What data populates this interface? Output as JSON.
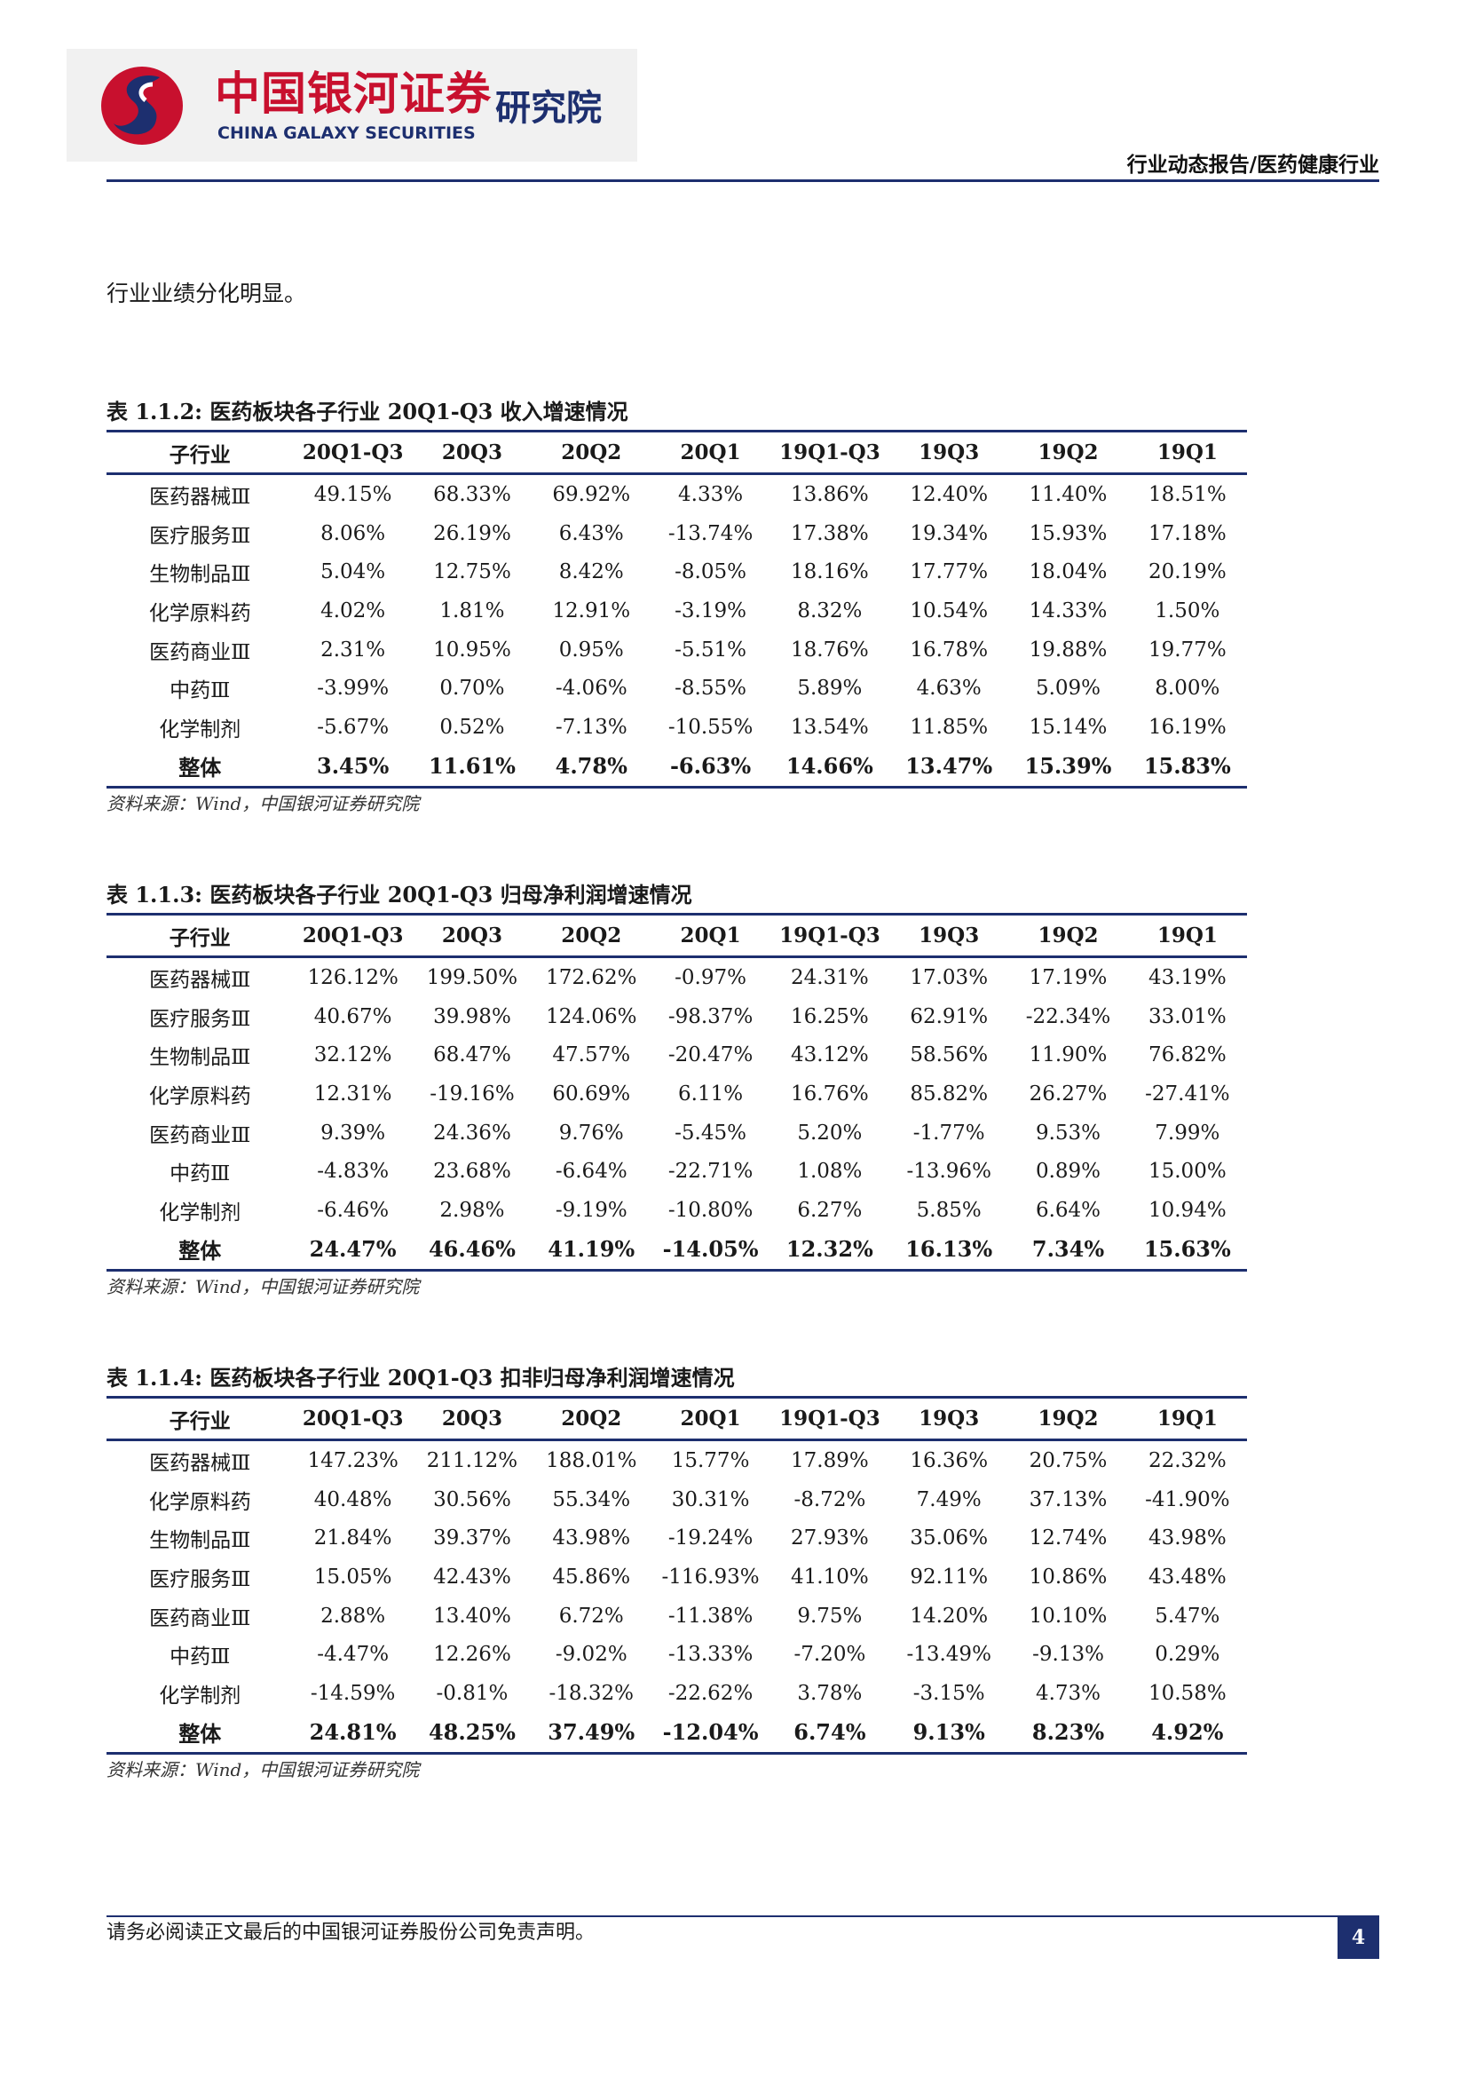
{
  "header": {
    "logo_cn": "中国银河证券",
    "logo_en": "CHINA GALAXY SECURITIES",
    "institute": "研究院",
    "report_type": "行业动态报告/医药健康行业",
    "colors": {
      "brand_red": "#c8102e",
      "brand_navy": "#1d2f6f"
    }
  },
  "intro": "行业业绩分化明显。",
  "columns": [
    "子行业",
    "20Q1-Q3",
    "20Q3",
    "20Q2",
    "20Q1",
    "19Q1-Q3",
    "19Q3",
    "19Q2",
    "19Q1"
  ],
  "tables": [
    {
      "title": "表 1.1.2:  医药板块各子行业 20Q1-Q3 收入增速情况",
      "rows": [
        [
          "医药器械Ⅲ",
          "49.15%",
          "68.33%",
          "69.92%",
          "4.33%",
          "13.86%",
          "12.40%",
          "11.40%",
          "18.51%"
        ],
        [
          "医疗服务Ⅲ",
          "8.06%",
          "26.19%",
          "6.43%",
          "-13.74%",
          "17.38%",
          "19.34%",
          "15.93%",
          "17.18%"
        ],
        [
          "生物制品Ⅲ",
          "5.04%",
          "12.75%",
          "8.42%",
          "-8.05%",
          "18.16%",
          "17.77%",
          "18.04%",
          "20.19%"
        ],
        [
          "化学原料药",
          "4.02%",
          "1.81%",
          "12.91%",
          "-3.19%",
          "8.32%",
          "10.54%",
          "14.33%",
          "1.50%"
        ],
        [
          "医药商业Ⅲ",
          "2.31%",
          "10.95%",
          "0.95%",
          "-5.51%",
          "18.76%",
          "16.78%",
          "19.88%",
          "19.77%"
        ],
        [
          "中药Ⅲ",
          "-3.99%",
          "0.70%",
          "-4.06%",
          "-8.55%",
          "5.89%",
          "4.63%",
          "5.09%",
          "8.00%"
        ],
        [
          "化学制剂",
          "-5.67%",
          "0.52%",
          "-7.13%",
          "-10.55%",
          "13.54%",
          "11.85%",
          "15.14%",
          "16.19%"
        ]
      ],
      "total": [
        "整体",
        "3.45%",
        "11.61%",
        "4.78%",
        "-6.63%",
        "14.66%",
        "13.47%",
        "15.39%",
        "15.83%"
      ],
      "source": "资料来源：Wind，中国银河证券研究院"
    },
    {
      "title": "表 1.1.3:  医药板块各子行业 20Q1-Q3 归母净利润增速情况",
      "rows": [
        [
          "医药器械Ⅲ",
          "126.12%",
          "199.50%",
          "172.62%",
          "-0.97%",
          "24.31%",
          "17.03%",
          "17.19%",
          "43.19%"
        ],
        [
          "医疗服务Ⅲ",
          "40.67%",
          "39.98%",
          "124.06%",
          "-98.37%",
          "16.25%",
          "62.91%",
          "-22.34%",
          "33.01%"
        ],
        [
          "生物制品Ⅲ",
          "32.12%",
          "68.47%",
          "47.57%",
          "-20.47%",
          "43.12%",
          "58.56%",
          "11.90%",
          "76.82%"
        ],
        [
          "化学原料药",
          "12.31%",
          "-19.16%",
          "60.69%",
          "6.11%",
          "16.76%",
          "85.82%",
          "26.27%",
          "-27.41%"
        ],
        [
          "医药商业Ⅲ",
          "9.39%",
          "24.36%",
          "9.76%",
          "-5.45%",
          "5.20%",
          "-1.77%",
          "9.53%",
          "7.99%"
        ],
        [
          "中药Ⅲ",
          "-4.83%",
          "23.68%",
          "-6.64%",
          "-22.71%",
          "1.08%",
          "-13.96%",
          "0.89%",
          "15.00%"
        ],
        [
          "化学制剂",
          "-6.46%",
          "2.98%",
          "-9.19%",
          "-10.80%",
          "6.27%",
          "5.85%",
          "6.64%",
          "10.94%"
        ]
      ],
      "total": [
        "整体",
        "24.47%",
        "46.46%",
        "41.19%",
        "-14.05%",
        "12.32%",
        "16.13%",
        "7.34%",
        "15.63%"
      ],
      "source": "资料来源：Wind，中国银河证券研究院"
    },
    {
      "title": "表 1.1.4:  医药板块各子行业 20Q1-Q3 扣非归母净利润增速情况",
      "rows": [
        [
          "医药器械Ⅲ",
          "147.23%",
          "211.12%",
          "188.01%",
          "15.77%",
          "17.89%",
          "16.36%",
          "20.75%",
          "22.32%"
        ],
        [
          "化学原料药",
          "40.48%",
          "30.56%",
          "55.34%",
          "30.31%",
          "-8.72%",
          "7.49%",
          "37.13%",
          "-41.90%"
        ],
        [
          "生物制品Ⅲ",
          "21.84%",
          "39.37%",
          "43.98%",
          "-19.24%",
          "27.93%",
          "35.06%",
          "12.74%",
          "43.98%"
        ],
        [
          "医疗服务Ⅲ",
          "15.05%",
          "42.43%",
          "45.86%",
          "-116.93%",
          "41.10%",
          "92.11%",
          "10.86%",
          "43.48%"
        ],
        [
          "医药商业Ⅲ",
          "2.88%",
          "13.40%",
          "6.72%",
          "-11.38%",
          "9.75%",
          "14.20%",
          "10.10%",
          "5.47%"
        ],
        [
          "中药Ⅲ",
          "-4.47%",
          "12.26%",
          "-9.02%",
          "-13.33%",
          "-7.20%",
          "-13.49%",
          "-9.13%",
          "0.29%"
        ],
        [
          "化学制剂",
          "-14.59%",
          "-0.81%",
          "-18.32%",
          "-22.62%",
          "3.78%",
          "-3.15%",
          "4.73%",
          "10.58%"
        ]
      ],
      "total": [
        "整体",
        "24.81%",
        "48.25%",
        "37.49%",
        "-12.04%",
        "6.74%",
        "9.13%",
        "8.23%",
        "4.92%"
      ],
      "source": "资料来源：Wind，中国银河证券研究院"
    }
  ],
  "footer": {
    "disclaimer": "请务必阅读正文最后的中国银河证券股份公司免责声明。",
    "page_number": "4"
  }
}
